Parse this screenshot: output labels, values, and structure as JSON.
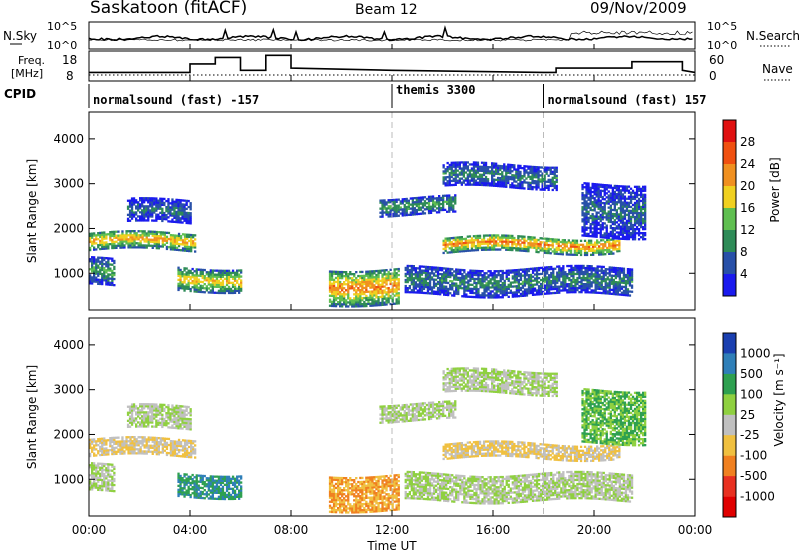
{
  "header": {
    "station": "Saskatoon (fitACF)",
    "beam": "Beam 12",
    "date": "09/Nov/2009"
  },
  "top_panel": {
    "left_label": "N.Sky",
    "left_ticks": [
      "10^5",
      "10^0"
    ],
    "right_ticks": [
      "10^5",
      "10^0"
    ],
    "right_label": "N.Search"
  },
  "freq_panel": {
    "left_label_1": "Freq.",
    "left_label_2": "[MHz]",
    "left_ticks": [
      "18",
      "8"
    ],
    "right_ticks": [
      "60",
      "0"
    ],
    "right_label": "Nave"
  },
  "cpid": {
    "label": "CPID",
    "segments": [
      {
        "text": "normalsound (fast) -157",
        "start_hour": 0
      },
      {
        "text": "themis 3300",
        "start_hour": 12
      },
      {
        "text": "normalsound (fast) 157",
        "start_hour": 18
      }
    ]
  },
  "x_axis": {
    "label": "Time UT",
    "ticks": [
      "00:00",
      "04:00",
      "08:00",
      "12:00",
      "16:00",
      "20:00",
      "00:00"
    ]
  },
  "power_panel": {
    "ylabel": "Slant Range [km]",
    "yticks": [
      "1000",
      "2000",
      "3000",
      "4000"
    ],
    "colorbar_label": "Power [dB]",
    "colorbar_ticks": [
      "4",
      "8",
      "12",
      "16",
      "20",
      "24",
      "28"
    ],
    "colors": [
      "#1a1aee",
      "#2850a8",
      "#2e8b57",
      "#5fbf50",
      "#f0d020",
      "#f09020",
      "#f05010",
      "#e01010"
    ]
  },
  "velocity_panel": {
    "ylabel": "Slant Range [km]",
    "yticks": [
      "1000",
      "2000",
      "3000",
      "4000"
    ],
    "colorbar_label": "Velocity [m s⁻¹]",
    "colorbar_ticks": [
      "1000",
      "500",
      "100",
      "25",
      "-25",
      "-100",
      "-500",
      "-1000"
    ],
    "colors": [
      "#1a3fb0",
      "#2f7fb8",
      "#2ea050",
      "#8fd040",
      "#c0c0c0",
      "#f0c040",
      "#f08020",
      "#e83020",
      "#e00000"
    ]
  },
  "chart_data": {
    "type": "heatmap",
    "x_range_hours": [
      0,
      24
    ],
    "y_range_km": [
      180,
      4600
    ],
    "gate_km": 45,
    "range_ticks_km": [
      1000,
      2000,
      3000,
      4000
    ],
    "time_ticks_hours": [
      0,
      4,
      8,
      12,
      16,
      20,
      24
    ],
    "cpid_boundaries_hours": [
      12,
      18
    ],
    "echo_bands": [
      {
        "from_hour": 0.0,
        "to_hour": 4.2,
        "range_km": [
          1500,
          1900
        ],
        "power_db": 24,
        "velocity": -25
      },
      {
        "from_hour": 1.5,
        "to_hour": 4.0,
        "range_km": [
          2100,
          2600
        ],
        "power_db": 10,
        "velocity": 25
      },
      {
        "from_hour": 0.0,
        "to_hour": 1.0,
        "range_km": [
          700,
          1300
        ],
        "power_db": 14,
        "velocity": 25
      },
      {
        "from_hour": 3.5,
        "to_hour": 6.0,
        "range_km": [
          600,
          1100
        ],
        "power_db": 22,
        "velocity": 500
      },
      {
        "from_hour": 9.5,
        "to_hour": 12.3,
        "range_km": [
          300,
          1100
        ],
        "power_db": 26,
        "velocity": -100
      },
      {
        "from_hour": 11.5,
        "to_hour": 14.5,
        "range_km": [
          2300,
          2700
        ],
        "power_db": 14,
        "velocity": 25
      },
      {
        "from_hour": 14.0,
        "to_hour": 21.0,
        "range_km": [
          1450,
          1800
        ],
        "power_db": 26,
        "velocity": -25
      },
      {
        "from_hour": 14.0,
        "to_hour": 18.5,
        "range_km": [
          2900,
          3400
        ],
        "power_db": 12,
        "velocity": 25
      },
      {
        "from_hour": 12.5,
        "to_hour": 21.5,
        "range_km": [
          500,
          1100
        ],
        "power_db": 12,
        "velocity": 25
      },
      {
        "from_hour": 19.5,
        "to_hour": 22.0,
        "range_km": [
          1800,
          3000
        ],
        "power_db": 10,
        "velocity": 100
      }
    ],
    "data_gaps_hours": [
      [
        6.0,
        6.8
      ],
      [
        7.6,
        8.2
      ],
      [
        8.8,
        9.0
      ]
    ],
    "frequency_mhz": [
      {
        "hour": 0,
        "value": 10
      },
      {
        "hour": 4.0,
        "value": 10
      },
      {
        "hour": 4.0,
        "value": 14
      },
      {
        "hour": 5.0,
        "value": 14
      },
      {
        "hour": 5.0,
        "value": 17
      },
      {
        "hour": 6.0,
        "value": 17
      },
      {
        "hour": 6.0,
        "value": 11
      },
      {
        "hour": 7.0,
        "value": 11
      },
      {
        "hour": 7.0,
        "value": 18
      },
      {
        "hour": 8.0,
        "value": 18
      },
      {
        "hour": 8.0,
        "value": 12
      },
      {
        "hour": 12,
        "value": 11
      },
      {
        "hour": 18,
        "value": 10
      },
      {
        "hour": 18.5,
        "value": 10
      },
      {
        "hour": 18.5,
        "value": 12
      },
      {
        "hour": 20.5,
        "value": 12
      },
      {
        "hour": 21.5,
        "value": 12
      },
      {
        "hour": 21.5,
        "value": 15
      },
      {
        "hour": 23.5,
        "value": 15
      },
      {
        "hour": 23.5,
        "value": 11
      },
      {
        "hour": 24,
        "value": 10
      }
    ],
    "nave": 12
  }
}
